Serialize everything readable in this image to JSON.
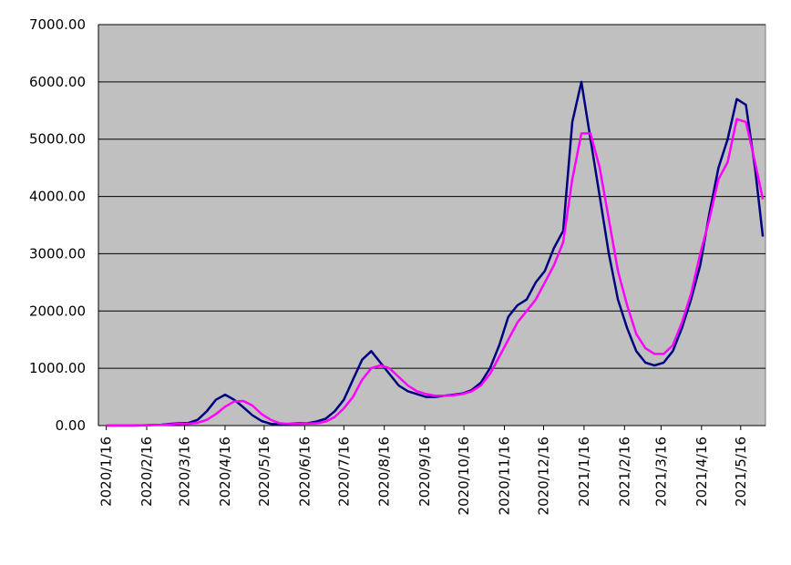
{
  "chart_data": {
    "type": "line",
    "x": [
      "2020/1/16",
      "2020/1/23",
      "2020/1/30",
      "2020/2/6",
      "2020/2/13",
      "2020/2/20",
      "2020/2/27",
      "2020/3/5",
      "2020/3/12",
      "2020/3/19",
      "2020/3/26",
      "2020/4/2",
      "2020/4/9",
      "2020/4/16",
      "2020/4/23",
      "2020/4/30",
      "2020/5/7",
      "2020/5/14",
      "2020/5/21",
      "2020/5/28",
      "2020/6/4",
      "2020/6/11",
      "2020/6/18",
      "2020/6/25",
      "2020/7/2",
      "2020/7/9",
      "2020/7/16",
      "2020/7/23",
      "2020/7/30",
      "2020/8/6",
      "2020/8/13",
      "2020/8/20",
      "2020/8/27",
      "2020/9/3",
      "2020/9/10",
      "2020/9/17",
      "2020/9/24",
      "2020/10/1",
      "2020/10/8",
      "2020/10/15",
      "2020/10/22",
      "2020/10/29",
      "2020/11/5",
      "2020/11/12",
      "2020/11/19",
      "2020/11/26",
      "2020/12/3",
      "2020/12/10",
      "2020/12/17",
      "2020/12/24",
      "2020/12/31",
      "2021/1/7",
      "2021/1/14",
      "2021/1/21",
      "2021/1/28",
      "2021/2/4",
      "2021/2/11",
      "2021/2/18",
      "2021/2/25",
      "2021/3/4",
      "2021/3/11",
      "2021/3/18",
      "2021/3/25",
      "2021/4/1",
      "2021/4/8",
      "2021/4/15",
      "2021/4/22",
      "2021/4/29",
      "2021/5/6",
      "2021/5/13",
      "2021/5/20",
      "2021/5/27",
      "2021/6/2"
    ],
    "series": [
      {
        "color": "#000080",
        "values": [
          0,
          0,
          0,
          0,
          5,
          10,
          15,
          30,
          40,
          45,
          100,
          250,
          450,
          540,
          450,
          320,
          180,
          80,
          30,
          20,
          30,
          40,
          40,
          70,
          120,
          250,
          450,
          800,
          1150,
          1300,
          1100,
          900,
          700,
          600,
          550,
          500,
          500,
          520,
          540,
          560,
          620,
          750,
          1000,
          1400,
          1900,
          2100,
          2200,
          2500,
          2700,
          3100,
          3400,
          5300,
          6000,
          5000,
          4000,
          3000,
          2200,
          1700,
          1300,
          1100,
          1050,
          1100,
          1300,
          1700,
          2200,
          2800,
          3700,
          4500,
          5000,
          5700,
          5600,
          4500,
          3300
        ]
      },
      {
        "color": "#ff00ff",
        "values": [
          0,
          0,
          0,
          0,
          3,
          8,
          12,
          20,
          30,
          30,
          50,
          100,
          200,
          330,
          420,
          430,
          350,
          200,
          100,
          40,
          30,
          30,
          35,
          40,
          70,
          150,
          300,
          500,
          800,
          1000,
          1050,
          1000,
          850,
          700,
          600,
          550,
          520,
          520,
          530,
          550,
          600,
          700,
          900,
          1200,
          1500,
          1800,
          2000,
          2200,
          2500,
          2800,
          3200,
          4300,
          5100,
          5100,
          4500,
          3600,
          2700,
          2100,
          1600,
          1350,
          1250,
          1250,
          1400,
          1800,
          2300,
          3000,
          3600,
          4300,
          4600,
          5350,
          5300,
          4600,
          3950
        ]
      }
    ],
    "xlim": [
      "2020/1/10",
      "2021/6/4"
    ],
    "xticks": [
      "2020/1/16",
      "2020/2/16",
      "2020/3/16",
      "2020/4/16",
      "2020/5/16",
      "2020/6/16",
      "2020/7/16",
      "2020/8/16",
      "2020/9/16",
      "2020/10/16",
      "2020/11/16",
      "2020/12/16",
      "2021/1/16",
      "2021/2/16",
      "2021/3/16",
      "2021/4/16",
      "2021/5/16"
    ],
    "ylim": [
      0,
      7000
    ],
    "yticks": [
      {
        "value": 0,
        "label": "0.00"
      },
      {
        "value": 1000,
        "label": "1000.00"
      },
      {
        "value": 2000,
        "label": "2000.00"
      },
      {
        "value": 3000,
        "label": "3000.00"
      },
      {
        "value": 4000,
        "label": "4000.00"
      },
      {
        "value": 5000,
        "label": "5000.00"
      },
      {
        "value": 6000,
        "label": "6000.00"
      },
      {
        "value": 7000,
        "label": "7000.00"
      }
    ],
    "grid": true,
    "background": "#c0c0c0"
  }
}
